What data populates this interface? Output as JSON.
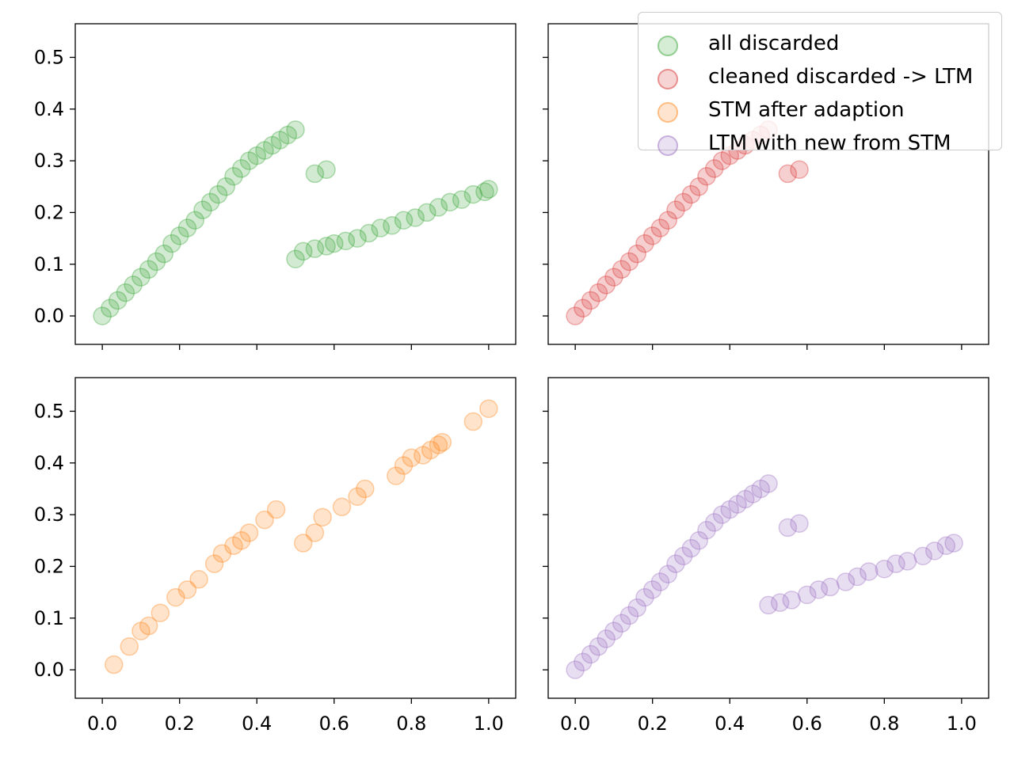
{
  "chart_data": [
    {
      "type": "scatter",
      "panel": "top-left",
      "color": "#2ca02c",
      "xlim": [
        -0.07,
        1.07
      ],
      "ylim": [
        -0.055,
        0.565
      ],
      "xticks": [
        0.0,
        0.2,
        0.4,
        0.6,
        0.8,
        1.0
      ],
      "yticks": [
        "0.0",
        "0.1",
        "0.2",
        "0.3",
        "0.4",
        "0.5"
      ],
      "show_xticklabels": false,
      "show_yticklabels": true,
      "series": [
        {
          "name": "all discarded",
          "x": [
            0.0,
            0.02,
            0.04,
            0.06,
            0.08,
            0.1,
            0.12,
            0.14,
            0.16,
            0.18,
            0.2,
            0.22,
            0.24,
            0.26,
            0.28,
            0.3,
            0.32,
            0.34,
            0.36,
            0.38,
            0.4,
            0.42,
            0.44,
            0.46,
            0.48,
            0.5,
            0.55,
            0.58,
            0.5,
            0.52,
            0.55,
            0.58,
            0.6,
            0.63,
            0.66,
            0.69,
            0.72,
            0.75,
            0.78,
            0.81,
            0.84,
            0.87,
            0.9,
            0.93,
            0.96,
            0.99,
            1.0
          ],
          "y": [
            0.0,
            0.015,
            0.03,
            0.045,
            0.06,
            0.075,
            0.09,
            0.105,
            0.12,
            0.14,
            0.155,
            0.17,
            0.185,
            0.205,
            0.22,
            0.235,
            0.25,
            0.27,
            0.285,
            0.3,
            0.31,
            0.32,
            0.33,
            0.34,
            0.35,
            0.36,
            0.275,
            0.283,
            0.11,
            0.125,
            0.13,
            0.135,
            0.14,
            0.145,
            0.15,
            0.16,
            0.17,
            0.175,
            0.185,
            0.19,
            0.2,
            0.21,
            0.22,
            0.225,
            0.235,
            0.24,
            0.245
          ]
        }
      ]
    },
    {
      "type": "scatter",
      "panel": "top-right",
      "color": "#d62728",
      "xlim": [
        -0.07,
        1.07
      ],
      "ylim": [
        -0.055,
        0.565
      ],
      "xticks": [
        0.0,
        0.2,
        0.4,
        0.6,
        0.8,
        1.0
      ],
      "yticks": [
        "0.0",
        "0.1",
        "0.2",
        "0.3",
        "0.4",
        "0.5"
      ],
      "show_xticklabels": false,
      "show_yticklabels": false,
      "series": [
        {
          "name": "cleaned discarded -> LTM",
          "x": [
            0.0,
            0.02,
            0.04,
            0.06,
            0.08,
            0.1,
            0.12,
            0.14,
            0.16,
            0.18,
            0.2,
            0.22,
            0.24,
            0.26,
            0.28,
            0.3,
            0.32,
            0.34,
            0.36,
            0.38,
            0.4,
            0.42,
            0.44,
            0.46,
            0.48,
            0.5,
            0.55,
            0.58
          ],
          "y": [
            0.0,
            0.015,
            0.03,
            0.045,
            0.06,
            0.075,
            0.09,
            0.105,
            0.12,
            0.14,
            0.155,
            0.17,
            0.185,
            0.205,
            0.22,
            0.235,
            0.25,
            0.27,
            0.285,
            0.3,
            0.31,
            0.32,
            0.33,
            0.34,
            0.35,
            0.36,
            0.275,
            0.283
          ]
        }
      ]
    },
    {
      "type": "scatter",
      "panel": "bottom-left",
      "color": "#ff7f0e",
      "xlim": [
        -0.07,
        1.07
      ],
      "ylim": [
        -0.055,
        0.565
      ],
      "xticks": [
        0.0,
        0.2,
        0.4,
        0.6,
        0.8,
        1.0
      ],
      "yticks": [
        "0.0",
        "0.1",
        "0.2",
        "0.3",
        "0.4",
        "0.5"
      ],
      "show_xticklabels": true,
      "show_yticklabels": true,
      "series": [
        {
          "name": "STM after adaption",
          "x": [
            0.03,
            0.07,
            0.1,
            0.12,
            0.15,
            0.19,
            0.22,
            0.25,
            0.29,
            0.31,
            0.34,
            0.36,
            0.38,
            0.42,
            0.45,
            0.52,
            0.55,
            0.57,
            0.62,
            0.66,
            0.68,
            0.76,
            0.78,
            0.8,
            0.83,
            0.85,
            0.87,
            0.88,
            0.96,
            1.0
          ],
          "y": [
            0.01,
            0.045,
            0.075,
            0.085,
            0.11,
            0.14,
            0.155,
            0.175,
            0.205,
            0.225,
            0.24,
            0.25,
            0.265,
            0.29,
            0.31,
            0.245,
            0.265,
            0.295,
            0.315,
            0.335,
            0.35,
            0.375,
            0.395,
            0.41,
            0.415,
            0.425,
            0.435,
            0.44,
            0.48,
            0.505
          ]
        }
      ]
    },
    {
      "type": "scatter",
      "panel": "bottom-right",
      "color": "#9467bd",
      "xlim": [
        -0.07,
        1.07
      ],
      "ylim": [
        -0.055,
        0.565
      ],
      "xticks": [
        0.0,
        0.2,
        0.4,
        0.6,
        0.8,
        1.0
      ],
      "yticks": [
        "0.0",
        "0.1",
        "0.2",
        "0.3",
        "0.4",
        "0.5"
      ],
      "show_xticklabels": true,
      "show_yticklabels": false,
      "series": [
        {
          "name": "LTM with new from STM",
          "x": [
            0.0,
            0.02,
            0.04,
            0.06,
            0.08,
            0.1,
            0.12,
            0.14,
            0.16,
            0.18,
            0.2,
            0.22,
            0.24,
            0.26,
            0.28,
            0.3,
            0.32,
            0.34,
            0.36,
            0.38,
            0.4,
            0.42,
            0.44,
            0.46,
            0.48,
            0.5,
            0.55,
            0.58,
            0.5,
            0.53,
            0.56,
            0.6,
            0.63,
            0.66,
            0.7,
            0.73,
            0.76,
            0.8,
            0.83,
            0.86,
            0.9,
            0.93,
            0.96,
            0.98
          ],
          "y": [
            0.0,
            0.015,
            0.03,
            0.045,
            0.06,
            0.075,
            0.09,
            0.105,
            0.12,
            0.14,
            0.155,
            0.17,
            0.185,
            0.205,
            0.22,
            0.235,
            0.25,
            0.27,
            0.285,
            0.3,
            0.31,
            0.32,
            0.33,
            0.34,
            0.35,
            0.36,
            0.275,
            0.283,
            0.125,
            0.13,
            0.135,
            0.145,
            0.155,
            0.16,
            0.17,
            0.18,
            0.19,
            0.195,
            0.205,
            0.21,
            0.22,
            0.23,
            0.24,
            0.245
          ]
        }
      ]
    }
  ],
  "legend": {
    "placement": "top-right",
    "entries": [
      {
        "label": "all discarded",
        "color": "#2ca02c"
      },
      {
        "label": "cleaned discarded -> LTM",
        "color": "#d62728"
      },
      {
        "label": "STM after adaption",
        "color": "#ff7f0e"
      },
      {
        "label": "LTM with new from STM",
        "color": "#9467bd"
      }
    ]
  }
}
